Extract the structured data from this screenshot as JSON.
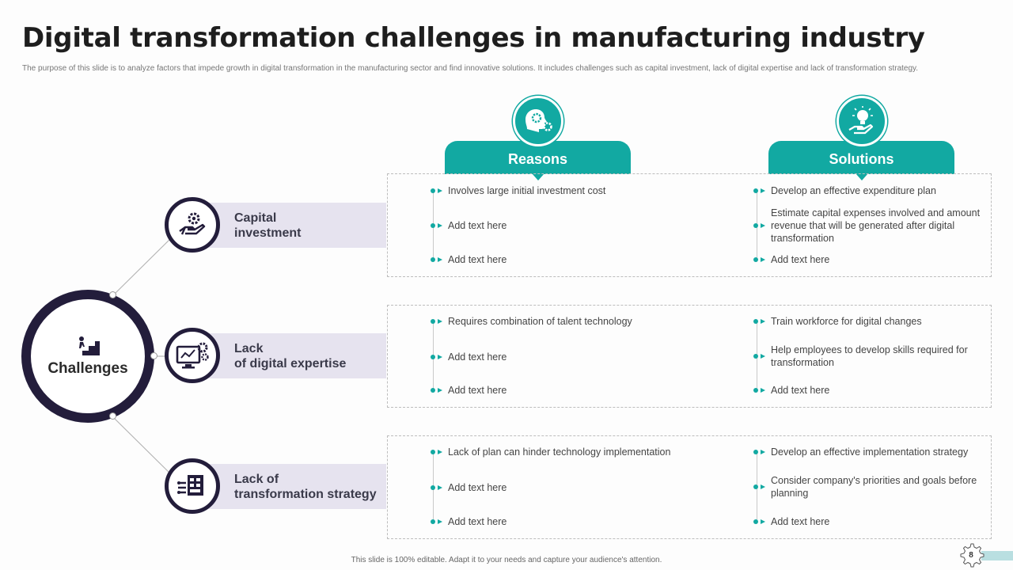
{
  "title": "Digital transformation challenges in manufacturing industry",
  "subtitle": "The purpose of this slide is to analyze factors that impede growth in digital transformation in the manufacturing sector and find innovative solutions. It includes challenges such as capital investment, lack of digital expertise and lack of transformation strategy.",
  "hub": {
    "label": "Challenges",
    "icon": "stairs-climber-icon"
  },
  "columns": {
    "reasons": "Reasons",
    "solutions": "Solutions"
  },
  "challenges": [
    {
      "name": "Capital investment",
      "line1": "Capital",
      "line2": "investment",
      "icon": "hand-gear-icon",
      "reasons": [
        "Involves  large initial investment  cost",
        "Add text here",
        "Add text here"
      ],
      "solutions": [
        "Develop  an  effective  expenditure plan",
        "Estimate capital expenses involved  and amount revenue  that will be generated after digital transformation",
        "Add text here"
      ]
    },
    {
      "name": "Lack of digital expertise",
      "line1": "Lack",
      "line2": "of digital expertise",
      "icon": "monitor-gears-icon",
      "reasons": [
        "Requires  combination  of  talent technology",
        "Add text here",
        "Add text here"
      ],
      "solutions": [
        "Train  workforce  for digital changes",
        "Help employees  to develop  skills required for transformation",
        "Add text here"
      ]
    },
    {
      "name": "Lack of transformation strategy",
      "line1": "Lack of",
      "line2": "transformation strategy",
      "icon": "strategy-board-icon",
      "reasons": [
        "Lack of plan can hinder technology implementation",
        "Add text here",
        "Add text here"
      ],
      "solutions": [
        "Develop  an  effective  implementation strategy",
        "Consider  company's  priorities  and goals before  planning",
        "Add text here"
      ]
    }
  ],
  "footer": "This slide is 100% editable.  Adapt it to your needs and capture your audience's attention.",
  "page_number": "8",
  "colors": {
    "teal": "#12a9a2",
    "navy": "#231d3b",
    "band": "#e6e3ef"
  }
}
